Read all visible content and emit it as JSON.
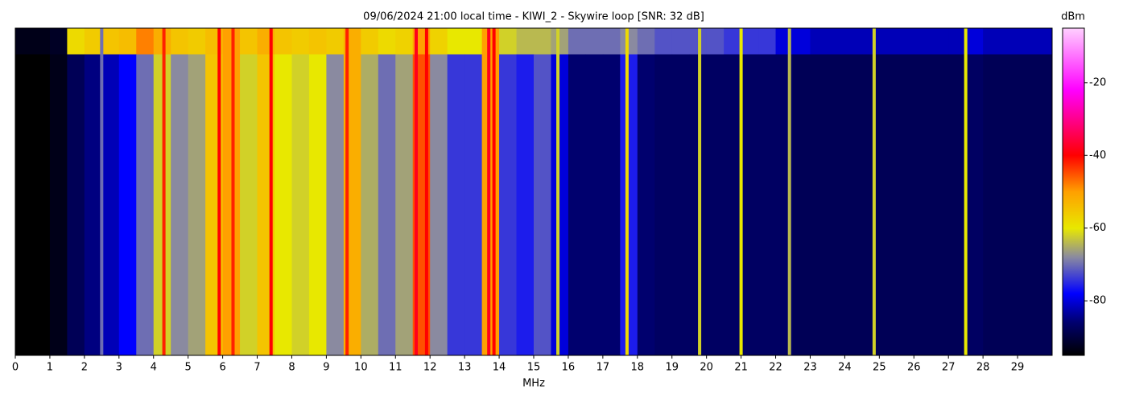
{
  "chart_data": {
    "type": "heatmap",
    "title": "09/06/2024 21:00 local time - KIWI_2 - Skywire loop [SNR: 32 dB]",
    "xlabel": "MHz",
    "colorbar_label": "dBm",
    "xlim": [
      0,
      30
    ],
    "xticks": [
      0,
      1,
      2,
      3,
      4,
      5,
      6,
      7,
      8,
      9,
      10,
      11,
      12,
      13,
      14,
      15,
      16,
      17,
      18,
      19,
      20,
      21,
      22,
      23,
      24,
      25,
      26,
      27,
      28,
      29
    ],
    "clim": [
      -95,
      -5
    ],
    "cticks": [
      -20,
      -40,
      -60,
      -80
    ],
    "colorscale": [
      [
        -95,
        "#000000"
      ],
      [
        -86,
        "#00006e"
      ],
      [
        -78,
        "#0000ff"
      ],
      [
        -68,
        "#8a8aa0"
      ],
      [
        -60,
        "#e8e800"
      ],
      [
        -50,
        "#ffa000"
      ],
      [
        -40,
        "#ff0000"
      ],
      [
        -22,
        "#ff00ff"
      ],
      [
        -5,
        "#ffd0ff"
      ]
    ],
    "bins": [
      0,
      0.5,
      1,
      1.5,
      2,
      2.5,
      3,
      3.5,
      4,
      4.5,
      5,
      5.5,
      6,
      6.5,
      7,
      7.5,
      8,
      8.5,
      9,
      9.5,
      10,
      10.5,
      11,
      11.5,
      12,
      12.5,
      13,
      13.5,
      14,
      14.5,
      15,
      15.5,
      16,
      16.5,
      17,
      17.5,
      18,
      18.5,
      19,
      19.5,
      20,
      20.5,
      21,
      21.5,
      22,
      22.5,
      23,
      23.5,
      24,
      24.5,
      25,
      25.5,
      26,
      26.5,
      27,
      27.5,
      28,
      28.5,
      29,
      29.5,
      30
    ],
    "values": [
      [
        -93,
        -93,
        -92,
        -58,
        -56,
        -55,
        -54,
        -48,
        -52,
        -55,
        -56,
        -54,
        -50,
        -55,
        -52,
        -55,
        -56,
        -55,
        -56,
        -52,
        -56,
        -58,
        -57,
        -50,
        -57,
        -60,
        -60,
        -50,
        -62,
        -64,
        -64,
        -66,
        -70,
        -70,
        -70,
        -68,
        -70,
        -72,
        -72,
        -72,
        -72,
        -74,
        -74,
        -74,
        -80,
        -80,
        -82,
        -82,
        -82,
        -82,
        -82,
        -82,
        -82,
        -82,
        -82,
        -80,
        -82,
        -82,
        -82,
        -82
      ],
      [
        -95,
        -95,
        -93,
        -88,
        -85,
        -82,
        -78,
        -70,
        -62,
        -68,
        -66,
        -55,
        -50,
        -62,
        -55,
        -60,
        -62,
        -60,
        -68,
        -52,
        -65,
        -70,
        -66,
        -45,
        -68,
        -74,
        -74,
        -50,
        -74,
        -76,
        -72,
        -80,
        -86,
        -86,
        -86,
        -76,
        -86,
        -87,
        -87,
        -87,
        -87,
        -87,
        -87,
        -87,
        -87,
        -88,
        -88,
        -88,
        -88,
        -88,
        -88,
        -88,
        -88,
        -88,
        -88,
        -87,
        -88,
        -88,
        -88,
        -88
      ]
    ],
    "lines": {
      "x": [
        2.5,
        4.3,
        5.9,
        6.3,
        7.4,
        9.6,
        11.6,
        11.9,
        13.7,
        13.85,
        15.7,
        17.7,
        19.8,
        21.0,
        22.4,
        24.85,
        27.5
      ],
      "values": [
        -70,
        -42,
        -40,
        -42,
        -40,
        -42,
        -38,
        -40,
        -38,
        -40,
        -62,
        -58,
        -62,
        -60,
        -64,
        -62,
        -60
      ]
    }
  }
}
